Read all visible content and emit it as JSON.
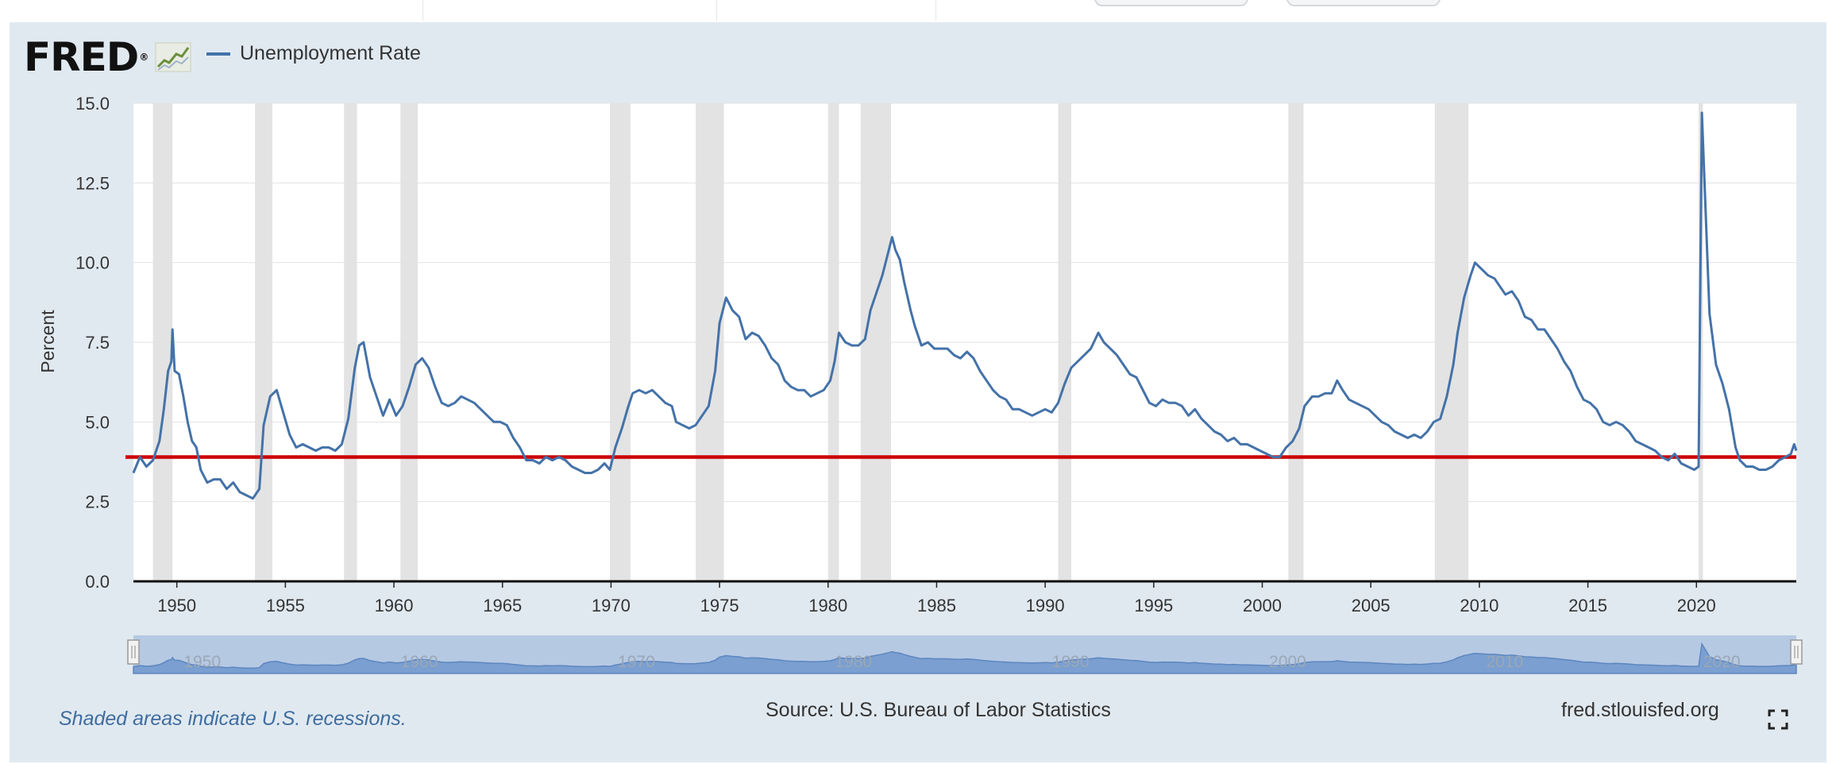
{
  "header": {
    "logo_text": "FRED",
    "legend_label": "Unemployment Rate",
    "legend_color": "#4472a8"
  },
  "footer": {
    "recession_note": "Shaded areas indicate U.S. recessions.",
    "source": "Source: U.S. Bureau of Labor Statistics",
    "site": "fred.stlouisfed.org",
    "fullscreen_icon": "fullscreen-icon"
  },
  "chart_data": {
    "type": "line",
    "title": "",
    "ylabel": "Percent",
    "xlabel": "",
    "xlim": [
      1948.0,
      2024.6
    ],
    "ylim": [
      0,
      15
    ],
    "yticks": [
      "0.0",
      "2.5",
      "5.0",
      "7.5",
      "10.0",
      "12.5",
      "15.0"
    ],
    "xticks": [
      "1950",
      "1955",
      "1960",
      "1965",
      "1970",
      "1975",
      "1980",
      "1985",
      "1990",
      "1995",
      "2000",
      "2005",
      "2010",
      "2015",
      "2020"
    ],
    "grid": true,
    "series": [
      {
        "name": "Unemployment Rate",
        "color": "#4472a8",
        "points": [
          [
            1948.0,
            3.4
          ],
          [
            1948.3,
            3.9
          ],
          [
            1948.6,
            3.6
          ],
          [
            1948.9,
            3.8
          ],
          [
            1949.2,
            4.4
          ],
          [
            1949.4,
            5.4
          ],
          [
            1949.6,
            6.6
          ],
          [
            1949.75,
            6.9
          ],
          [
            1949.8,
            7.9
          ],
          [
            1949.9,
            6.6
          ],
          [
            1950.1,
            6.5
          ],
          [
            1950.3,
            5.8
          ],
          [
            1950.5,
            5.0
          ],
          [
            1950.7,
            4.4
          ],
          [
            1950.9,
            4.2
          ],
          [
            1951.1,
            3.5
          ],
          [
            1951.4,
            3.1
          ],
          [
            1951.7,
            3.2
          ],
          [
            1952.0,
            3.2
          ],
          [
            1952.3,
            2.9
          ],
          [
            1952.6,
            3.1
          ],
          [
            1952.9,
            2.8
          ],
          [
            1953.2,
            2.7
          ],
          [
            1953.5,
            2.6
          ],
          [
            1953.8,
            2.9
          ],
          [
            1954.0,
            4.9
          ],
          [
            1954.3,
            5.8
          ],
          [
            1954.6,
            6.0
          ],
          [
            1954.9,
            5.3
          ],
          [
            1955.2,
            4.6
          ],
          [
            1955.5,
            4.2
          ],
          [
            1955.8,
            4.3
          ],
          [
            1956.1,
            4.2
          ],
          [
            1956.4,
            4.1
          ],
          [
            1956.7,
            4.2
          ],
          [
            1957.0,
            4.2
          ],
          [
            1957.3,
            4.1
          ],
          [
            1957.6,
            4.3
          ],
          [
            1957.9,
            5.1
          ],
          [
            1958.2,
            6.7
          ],
          [
            1958.4,
            7.4
          ],
          [
            1958.6,
            7.5
          ],
          [
            1958.9,
            6.4
          ],
          [
            1959.2,
            5.8
          ],
          [
            1959.5,
            5.2
          ],
          [
            1959.8,
            5.7
          ],
          [
            1960.1,
            5.2
          ],
          [
            1960.4,
            5.5
          ],
          [
            1960.7,
            6.1
          ],
          [
            1961.0,
            6.8
          ],
          [
            1961.3,
            7.0
          ],
          [
            1961.6,
            6.7
          ],
          [
            1961.9,
            6.1
          ],
          [
            1962.2,
            5.6
          ],
          [
            1962.5,
            5.5
          ],
          [
            1962.8,
            5.6
          ],
          [
            1963.1,
            5.8
          ],
          [
            1963.4,
            5.7
          ],
          [
            1963.7,
            5.6
          ],
          [
            1964.0,
            5.4
          ],
          [
            1964.3,
            5.2
          ],
          [
            1964.6,
            5.0
          ],
          [
            1964.9,
            5.0
          ],
          [
            1965.2,
            4.9
          ],
          [
            1965.5,
            4.5
          ],
          [
            1965.8,
            4.2
          ],
          [
            1966.1,
            3.8
          ],
          [
            1966.4,
            3.8
          ],
          [
            1966.7,
            3.7
          ],
          [
            1967.0,
            3.9
          ],
          [
            1967.3,
            3.8
          ],
          [
            1967.6,
            3.9
          ],
          [
            1967.9,
            3.8
          ],
          [
            1968.2,
            3.6
          ],
          [
            1968.5,
            3.5
          ],
          [
            1968.8,
            3.4
          ],
          [
            1969.1,
            3.4
          ],
          [
            1969.4,
            3.5
          ],
          [
            1969.7,
            3.7
          ],
          [
            1969.95,
            3.5
          ],
          [
            1970.2,
            4.2
          ],
          [
            1970.5,
            4.8
          ],
          [
            1970.8,
            5.5
          ],
          [
            1971.0,
            5.9
          ],
          [
            1971.3,
            6.0
          ],
          [
            1971.6,
            5.9
          ],
          [
            1971.9,
            6.0
          ],
          [
            1972.2,
            5.8
          ],
          [
            1972.5,
            5.6
          ],
          [
            1972.8,
            5.5
          ],
          [
            1973.0,
            5.0
          ],
          [
            1973.3,
            4.9
          ],
          [
            1973.6,
            4.8
          ],
          [
            1973.9,
            4.9
          ],
          [
            1974.2,
            5.2
          ],
          [
            1974.5,
            5.5
          ],
          [
            1974.8,
            6.6
          ],
          [
            1975.0,
            8.1
          ],
          [
            1975.3,
            8.9
          ],
          [
            1975.6,
            8.5
          ],
          [
            1975.9,
            8.3
          ],
          [
            1976.2,
            7.6
          ],
          [
            1976.5,
            7.8
          ],
          [
            1976.8,
            7.7
          ],
          [
            1977.1,
            7.4
          ],
          [
            1977.4,
            7.0
          ],
          [
            1977.7,
            6.8
          ],
          [
            1978.0,
            6.3
          ],
          [
            1978.3,
            6.1
          ],
          [
            1978.6,
            6.0
          ],
          [
            1978.9,
            6.0
          ],
          [
            1979.2,
            5.8
          ],
          [
            1979.5,
            5.9
          ],
          [
            1979.8,
            6.0
          ],
          [
            1980.1,
            6.3
          ],
          [
            1980.3,
            6.9
          ],
          [
            1980.5,
            7.8
          ],
          [
            1980.8,
            7.5
          ],
          [
            1981.1,
            7.4
          ],
          [
            1981.4,
            7.4
          ],
          [
            1981.7,
            7.6
          ],
          [
            1981.95,
            8.5
          ],
          [
            1982.2,
            9.0
          ],
          [
            1982.5,
            9.6
          ],
          [
            1982.8,
            10.4
          ],
          [
            1982.95,
            10.8
          ],
          [
            1983.1,
            10.4
          ],
          [
            1983.3,
            10.1
          ],
          [
            1983.5,
            9.4
          ],
          [
            1983.8,
            8.5
          ],
          [
            1984.0,
            8.0
          ],
          [
            1984.3,
            7.4
          ],
          [
            1984.6,
            7.5
          ],
          [
            1984.9,
            7.3
          ],
          [
            1985.2,
            7.3
          ],
          [
            1985.5,
            7.3
          ],
          [
            1985.8,
            7.1
          ],
          [
            1986.1,
            7.0
          ],
          [
            1986.4,
            7.2
          ],
          [
            1986.7,
            7.0
          ],
          [
            1987.0,
            6.6
          ],
          [
            1987.3,
            6.3
          ],
          [
            1987.6,
            6.0
          ],
          [
            1987.9,
            5.8
          ],
          [
            1988.2,
            5.7
          ],
          [
            1988.5,
            5.4
          ],
          [
            1988.8,
            5.4
          ],
          [
            1989.1,
            5.3
          ],
          [
            1989.4,
            5.2
          ],
          [
            1989.7,
            5.3
          ],
          [
            1990.0,
            5.4
          ],
          [
            1990.3,
            5.3
          ],
          [
            1990.6,
            5.6
          ],
          [
            1990.9,
            6.2
          ],
          [
            1991.2,
            6.7
          ],
          [
            1991.5,
            6.9
          ],
          [
            1991.8,
            7.1
          ],
          [
            1992.1,
            7.3
          ],
          [
            1992.45,
            7.8
          ],
          [
            1992.7,
            7.5
          ],
          [
            1993.0,
            7.3
          ],
          [
            1993.3,
            7.1
          ],
          [
            1993.6,
            6.8
          ],
          [
            1993.9,
            6.5
          ],
          [
            1994.2,
            6.4
          ],
          [
            1994.5,
            6.0
          ],
          [
            1994.8,
            5.6
          ],
          [
            1995.1,
            5.5
          ],
          [
            1995.4,
            5.7
          ],
          [
            1995.7,
            5.6
          ],
          [
            1996.0,
            5.6
          ],
          [
            1996.3,
            5.5
          ],
          [
            1996.6,
            5.2
          ],
          [
            1996.9,
            5.4
          ],
          [
            1997.2,
            5.1
          ],
          [
            1997.5,
            4.9
          ],
          [
            1997.8,
            4.7
          ],
          [
            1998.1,
            4.6
          ],
          [
            1998.4,
            4.4
          ],
          [
            1998.7,
            4.5
          ],
          [
            1999.0,
            4.3
          ],
          [
            1999.3,
            4.3
          ],
          [
            1999.6,
            4.2
          ],
          [
            1999.9,
            4.1
          ],
          [
            2000.2,
            4.0
          ],
          [
            2000.5,
            3.9
          ],
          [
            2000.8,
            3.9
          ],
          [
            2001.1,
            4.2
          ],
          [
            2001.4,
            4.4
          ],
          [
            2001.7,
            4.8
          ],
          [
            2001.95,
            5.5
          ],
          [
            2002.3,
            5.8
          ],
          [
            2002.6,
            5.8
          ],
          [
            2002.9,
            5.9
          ],
          [
            2003.2,
            5.9
          ],
          [
            2003.45,
            6.3
          ],
          [
            2003.7,
            6.0
          ],
          [
            2004.0,
            5.7
          ],
          [
            2004.3,
            5.6
          ],
          [
            2004.6,
            5.5
          ],
          [
            2004.9,
            5.4
          ],
          [
            2005.2,
            5.2
          ],
          [
            2005.5,
            5.0
          ],
          [
            2005.8,
            4.9
          ],
          [
            2006.1,
            4.7
          ],
          [
            2006.4,
            4.6
          ],
          [
            2006.7,
            4.5
          ],
          [
            2007.0,
            4.6
          ],
          [
            2007.3,
            4.5
          ],
          [
            2007.6,
            4.7
          ],
          [
            2007.9,
            5.0
          ],
          [
            2008.2,
            5.1
          ],
          [
            2008.5,
            5.8
          ],
          [
            2008.8,
            6.8
          ],
          [
            2009.0,
            7.8
          ],
          [
            2009.3,
            8.9
          ],
          [
            2009.6,
            9.6
          ],
          [
            2009.8,
            10.0
          ],
          [
            2010.1,
            9.8
          ],
          [
            2010.4,
            9.6
          ],
          [
            2010.7,
            9.5
          ],
          [
            2010.9,
            9.3
          ],
          [
            2011.2,
            9.0
          ],
          [
            2011.5,
            9.1
          ],
          [
            2011.8,
            8.8
          ],
          [
            2012.1,
            8.3
          ],
          [
            2012.4,
            8.2
          ],
          [
            2012.7,
            7.9
          ],
          [
            2013.0,
            7.9
          ],
          [
            2013.3,
            7.6
          ],
          [
            2013.6,
            7.3
          ],
          [
            2013.9,
            6.9
          ],
          [
            2014.2,
            6.6
          ],
          [
            2014.5,
            6.1
          ],
          [
            2014.8,
            5.7
          ],
          [
            2015.1,
            5.6
          ],
          [
            2015.4,
            5.4
          ],
          [
            2015.7,
            5.0
          ],
          [
            2016.0,
            4.9
          ],
          [
            2016.3,
            5.0
          ],
          [
            2016.6,
            4.9
          ],
          [
            2016.9,
            4.7
          ],
          [
            2017.2,
            4.4
          ],
          [
            2017.5,
            4.3
          ],
          [
            2017.8,
            4.2
          ],
          [
            2018.1,
            4.1
          ],
          [
            2018.4,
            3.9
          ],
          [
            2018.7,
            3.8
          ],
          [
            2019.0,
            4.0
          ],
          [
            2019.3,
            3.7
          ],
          [
            2019.6,
            3.6
          ],
          [
            2019.9,
            3.5
          ],
          [
            2020.1,
            3.6
          ],
          [
            2020.25,
            14.7
          ],
          [
            2020.45,
            11.1
          ],
          [
            2020.6,
            8.4
          ],
          [
            2020.9,
            6.8
          ],
          [
            2021.2,
            6.2
          ],
          [
            2021.5,
            5.4
          ],
          [
            2021.8,
            4.2
          ],
          [
            2022.0,
            3.8
          ],
          [
            2022.3,
            3.6
          ],
          [
            2022.6,
            3.6
          ],
          [
            2022.9,
            3.5
          ],
          [
            2023.2,
            3.5
          ],
          [
            2023.5,
            3.6
          ],
          [
            2023.8,
            3.8
          ],
          [
            2024.1,
            3.9
          ],
          [
            2024.35,
            4.0
          ],
          [
            2024.5,
            4.3
          ],
          [
            2024.6,
            4.1
          ]
        ]
      }
    ],
    "reference_line": {
      "y": 3.9,
      "color": "#cc0000"
    },
    "recessions": [
      [
        1948.9,
        1949.8
      ],
      [
        1953.6,
        1954.4
      ],
      [
        1957.7,
        1958.3
      ],
      [
        1960.3,
        1961.1
      ],
      [
        1969.95,
        1970.9
      ],
      [
        1973.9,
        1975.2
      ],
      [
        1980.0,
        1980.5
      ],
      [
        1981.5,
        1982.9
      ],
      [
        1990.6,
        1991.2
      ],
      [
        2001.2,
        2001.9
      ],
      [
        2007.95,
        2009.5
      ],
      [
        2020.1,
        2020.3
      ]
    ],
    "navigator": {
      "labels": [
        "1950",
        "1960",
        "1970",
        "1980",
        "1990",
        "2000",
        "2010",
        "2020"
      ]
    }
  }
}
